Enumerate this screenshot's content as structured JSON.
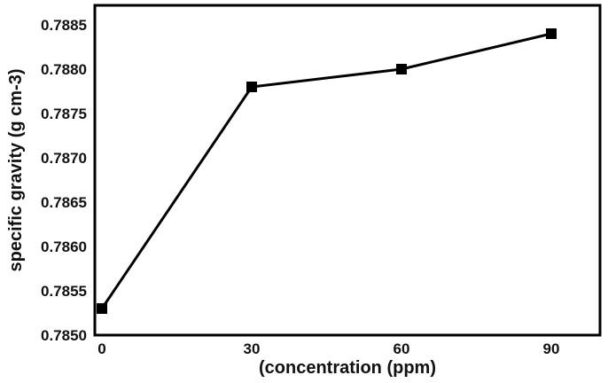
{
  "chart_data": {
    "type": "line",
    "title": "",
    "xlabel": "(concentration (ppm)",
    "ylabel": "specific gravity (g cm-3)",
    "x": [
      0,
      30,
      60,
      90
    ],
    "series": [
      {
        "name": "specific gravity",
        "values": [
          0.7853,
          0.7878,
          0.788,
          0.7884
        ],
        "marker": "square",
        "color": "#000000"
      }
    ],
    "xticks": [
      "0",
      "30",
      "60",
      "90"
    ],
    "yticks": [
      "0.7850",
      "0.7855",
      "0.7860",
      "0.7865",
      "0.7870",
      "0.7875",
      "0.7880",
      "0.7885"
    ],
    "xlim": [
      0,
      100
    ],
    "ylim": [
      0.785,
      0.7885
    ],
    "grid": false,
    "legend": null
  }
}
